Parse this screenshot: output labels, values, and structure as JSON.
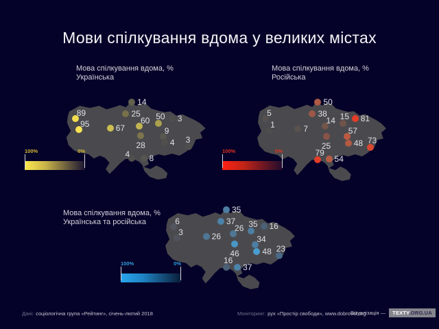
{
  "title": "Мови спілкування вдома у великих містах",
  "chart_data": {
    "type": "map",
    "map_fill": "#4a4a4e",
    "note": "Three dot maps of Ukraine; dot color encodes % value on each legend scale",
    "shared_dot_positions": [
      {
        "x": 48,
        "y": 10.5
      },
      {
        "x": 44,
        "y": 23.5
      },
      {
        "x": 10,
        "y": 29.5
      },
      {
        "x": 12.5,
        "y": 42
      },
      {
        "x": 33.5,
        "y": 40.5
      },
      {
        "x": 53,
        "y": 37.5
      },
      {
        "x": 66,
        "y": 34.5
      },
      {
        "x": 75,
        "y": 29
      },
      {
        "x": 69,
        "y": 49.5
      },
      {
        "x": 54,
        "y": 49
      },
      {
        "x": 70,
        "y": 57
      },
      {
        "x": 86,
        "y": 61.5
      },
      {
        "x": 48,
        "y": 75
      },
      {
        "x": 56,
        "y": 74.5
      }
    ],
    "maps": [
      {
        "subtitle_line1": "Мова спілкування вдома, %",
        "subtitle_line2": "Українська",
        "legend": {
          "left_label": "100%",
          "right_label": "0%",
          "label_color": "#d9ba34",
          "from": "#ffe94f",
          "mid": "#c7b348",
          "to": "#1a1434"
        },
        "dots": [
          {
            "value": 14,
            "color": "#63614d",
            "label_side": "r"
          },
          {
            "value": 25,
            "color": "#777049",
            "label_side": "r"
          },
          {
            "value": 89,
            "color": "#f2dd4e",
            "label_side": "tr"
          },
          {
            "value": 95,
            "color": "#f8e452",
            "label_side": "tr"
          },
          {
            "value": 67,
            "color": "#cdbe52",
            "label_side": "r"
          },
          {
            "value": 60,
            "color": "#c2b451",
            "label_side": "tr"
          },
          {
            "value": 50,
            "color": "#ada14e",
            "label_side": "t"
          },
          {
            "value": 3,
            "color": "#4e4e4e",
            "label_side": "r"
          },
          {
            "value": 9,
            "color": "#585750",
            "label_side": "tr"
          },
          {
            "value": 28,
            "color": "#7c744c",
            "label_side": "b"
          },
          {
            "value": 4,
            "color": "#504f4e",
            "label_side": "r"
          },
          {
            "value": 3,
            "color": "#4e4e4e",
            "label_side": "t"
          },
          {
            "value": 4,
            "color": "#504f4e",
            "label_side": "tl"
          },
          {
            "value": 8,
            "color": "#575550",
            "label_side": "r"
          }
        ]
      },
      {
        "subtitle_line1": "Мова спілкування вдома, %",
        "subtitle_line2": "Російська",
        "legend": {
          "left_label": "100%",
          "right_label": "0%",
          "label_color": "#e8301e",
          "from": "#ff2012",
          "mid": "#c22417",
          "to": "#1f0b2e"
        },
        "dots": [
          {
            "value": 50,
            "color": "#ae5a44",
            "label_side": "r"
          },
          {
            "value": 38,
            "color": "#9d5848",
            "label_side": "r"
          },
          {
            "value": 5,
            "color": "#55504f",
            "label_side": "tr"
          },
          {
            "value": 1,
            "color": "#4e4d4e",
            "label_side": "tr"
          },
          {
            "value": 7,
            "color": "#5a524e",
            "label_side": "r"
          },
          {
            "value": 14,
            "color": "#735549",
            "label_side": "tr"
          },
          {
            "value": 15,
            "color": "#70544a",
            "label_side": "t"
          },
          {
            "value": 81,
            "color": "#e43c28",
            "label_side": "r"
          },
          {
            "value": 57,
            "color": "#bc5a41",
            "label_side": "tr"
          },
          {
            "value": 25,
            "color": "#885447",
            "label_side": "b"
          },
          {
            "value": 48,
            "color": "#b25942",
            "label_side": "r"
          },
          {
            "value": 73,
            "color": "#d94730",
            "label_side": "t"
          },
          {
            "value": 79,
            "color": "#e33e29",
            "label_side": "t"
          },
          {
            "value": 54,
            "color": "#b75c44",
            "label_side": "r"
          }
        ]
      },
      {
        "subtitle_line1": "Мова спілкування вдома, %",
        "subtitle_line2": "Українська та російська",
        "legend": {
          "left_label": "100%",
          "right_label": "0%",
          "label_color": "#2f9fdf",
          "from": "#2aa6ee",
          "mid": "#1f86c6",
          "to": "#0a1c38"
        },
        "dots": [
          {
            "value": 35,
            "color": "#4d7ea2",
            "label_side": "r"
          },
          {
            "value": 37,
            "color": "#4c83a9",
            "label_side": "r"
          },
          {
            "value": 6,
            "color": "#54565f",
            "label_side": "tr"
          },
          {
            "value": 3,
            "color": "#51535c",
            "label_side": "tr"
          },
          {
            "value": 26,
            "color": "#4f7795",
            "label_side": "r"
          },
          {
            "value": 26,
            "color": "#4f7795",
            "label_side": "tr"
          },
          {
            "value": 35,
            "color": "#4d7ea2",
            "label_side": "t"
          },
          {
            "value": 16,
            "color": "#4a6076",
            "label_side": "r"
          },
          {
            "value": 34,
            "color": "#4d7da1",
            "label_side": "tr"
          },
          {
            "value": 46,
            "color": "#4997c5",
            "label_side": "b"
          },
          {
            "value": 48,
            "color": "#4a9ecf",
            "label_side": "r"
          },
          {
            "value": 23,
            "color": "#4a6a87",
            "label_side": "t"
          },
          {
            "value": 16,
            "color": "#4a6076",
            "label_side": "t"
          },
          {
            "value": 37,
            "color": "#4c83a9",
            "label_side": "r"
          }
        ]
      }
    ]
  },
  "footer": {
    "data_label": "Дані:",
    "data_value": "соціологічна група «Рейтинг», січень-лютий 2018",
    "monitoring_label": "Моніторинг:",
    "monitoring_value": "рух «Простір свободи», www.dobrovol.org",
    "visualization_label": "Візуалізація —",
    "badge_primary": "TEXTY",
    "badge_secondary": ".ORG.UA"
  }
}
